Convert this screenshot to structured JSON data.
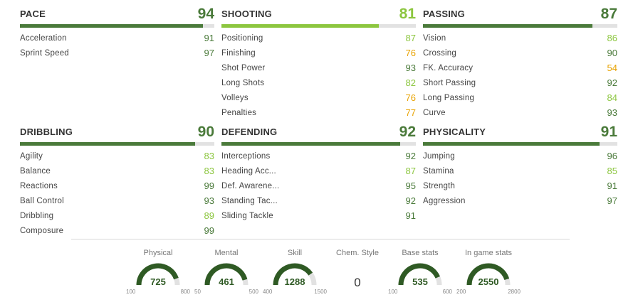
{
  "categories": [
    {
      "name": "PACE",
      "value": 94,
      "stats": [
        {
          "label": "Acceleration",
          "value": 91
        },
        {
          "label": "Sprint Speed",
          "value": 97
        }
      ]
    },
    {
      "name": "SHOOTING",
      "value": 81,
      "stats": [
        {
          "label": "Positioning",
          "value": 87
        },
        {
          "label": "Finishing",
          "value": 76
        },
        {
          "label": "Shot Power",
          "value": 93
        },
        {
          "label": "Long Shots",
          "value": 82
        },
        {
          "label": "Volleys",
          "value": 76
        },
        {
          "label": "Penalties",
          "value": 77
        }
      ]
    },
    {
      "name": "PASSING",
      "value": 87,
      "stats": [
        {
          "label": "Vision",
          "value": 86
        },
        {
          "label": "Crossing",
          "value": 90
        },
        {
          "label": "FK. Accuracy",
          "value": 54
        },
        {
          "label": "Short Passing",
          "value": 92
        },
        {
          "label": "Long Passing",
          "value": 84
        },
        {
          "label": "Curve",
          "value": 93
        }
      ]
    },
    {
      "name": "DRIBBLING",
      "value": 90,
      "stats": [
        {
          "label": "Agility",
          "value": 83
        },
        {
          "label": "Balance",
          "value": 83
        },
        {
          "label": "Reactions",
          "value": 99
        },
        {
          "label": "Ball Control",
          "value": 93
        },
        {
          "label": "Dribbling",
          "value": 89
        },
        {
          "label": "Composure",
          "value": 99
        }
      ]
    },
    {
      "name": "DEFENDING",
      "value": 92,
      "stats": [
        {
          "label": "Interceptions",
          "value": 92
        },
        {
          "label": "Heading Acc...",
          "value": 87
        },
        {
          "label": "Def. Awarene...",
          "value": 95
        },
        {
          "label": "Standing Tac...",
          "value": 92
        },
        {
          "label": "Sliding Tackle",
          "value": 91
        }
      ]
    },
    {
      "name": "PHYSICALITY",
      "value": 91,
      "stats": [
        {
          "label": "Jumping",
          "value": 96
        },
        {
          "label": "Stamina",
          "value": 85
        },
        {
          "label": "Strength",
          "value": 91
        },
        {
          "label": "Aggression",
          "value": 97
        }
      ]
    }
  ],
  "gauges": [
    {
      "title": "Physical",
      "value": 725,
      "min": 100,
      "max": 800
    },
    {
      "title": "Mental",
      "value": 461,
      "min": 50,
      "max": 500
    },
    {
      "title": "Skill",
      "value": 1288,
      "min": 400,
      "max": 1500
    },
    {
      "title": "Base stats",
      "value": 535,
      "min": 100,
      "max": 600
    },
    {
      "title": "In game stats",
      "value": 2550,
      "min": 200,
      "max": 2800
    }
  ],
  "chem_style": {
    "title": "Chem. Style",
    "value": "0"
  },
  "colors": {
    "dark": "#4a7a3a",
    "light": "#8cc63f",
    "gold": "#e8a200",
    "track": "#e2e2e2",
    "gauge_dark": "#2f5a24"
  }
}
